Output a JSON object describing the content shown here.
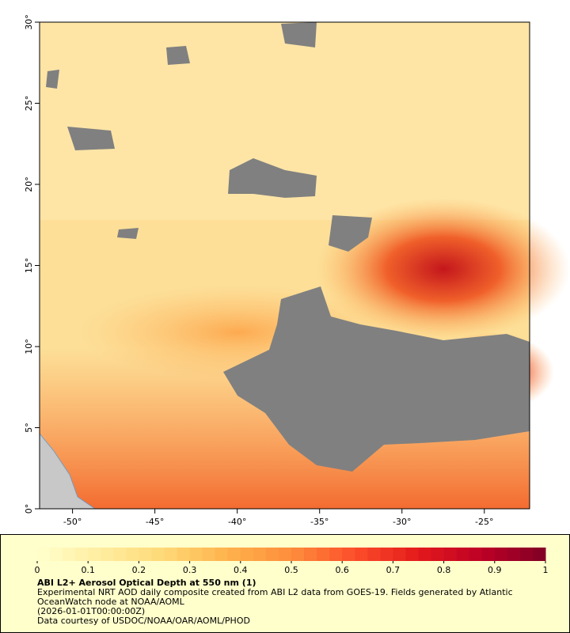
{
  "chart_data": {
    "type": "map",
    "xlim": [
      -52,
      -22.25
    ],
    "ylim": [
      0,
      30
    ],
    "xticks": [
      {
        "value": -50,
        "label": "-50°"
      },
      {
        "value": -45,
        "label": "-45°"
      },
      {
        "value": -40,
        "label": "-40°"
      },
      {
        "value": -35,
        "label": "-35°"
      },
      {
        "value": -30,
        "label": "-30°"
      },
      {
        "value": -25,
        "label": "-25°"
      }
    ],
    "yticks": [
      {
        "value": 0,
        "label": "0°"
      },
      {
        "value": 5,
        "label": "5°"
      },
      {
        "value": 10,
        "label": "10°"
      },
      {
        "value": 15,
        "label": "15°"
      },
      {
        "value": 20,
        "label": "20°"
      },
      {
        "value": 25,
        "label": "25°"
      },
      {
        "value": 30,
        "label": "30°"
      }
    ],
    "colorbar": {
      "clim": [
        0,
        1
      ],
      "ticks": [
        0,
        0.1,
        0.2,
        0.3,
        0.4,
        0.5,
        0.6,
        0.7,
        0.8,
        0.9,
        1
      ],
      "colors": [
        "#ffffcc",
        "#ffeda0",
        "#fed976",
        "#feb24c",
        "#fd8d3c",
        "#fc4e2a",
        "#e31a1c",
        "#bd0026",
        "#800026"
      ]
    },
    "title": "ABI L2+ Aerosol Optical Depth at 550 nm (1)",
    "caption": [
      "Experimental NRT AOD daily composite created from ABI L2 data from GOES-19. Fields generated by Atlantic OceanWatch node at NOAA/AOML",
      "(2026-01-01T00:00:00Z)",
      "Data courtesy of USDOC/NOAA/OAR/AOML/PHOD"
    ]
  }
}
